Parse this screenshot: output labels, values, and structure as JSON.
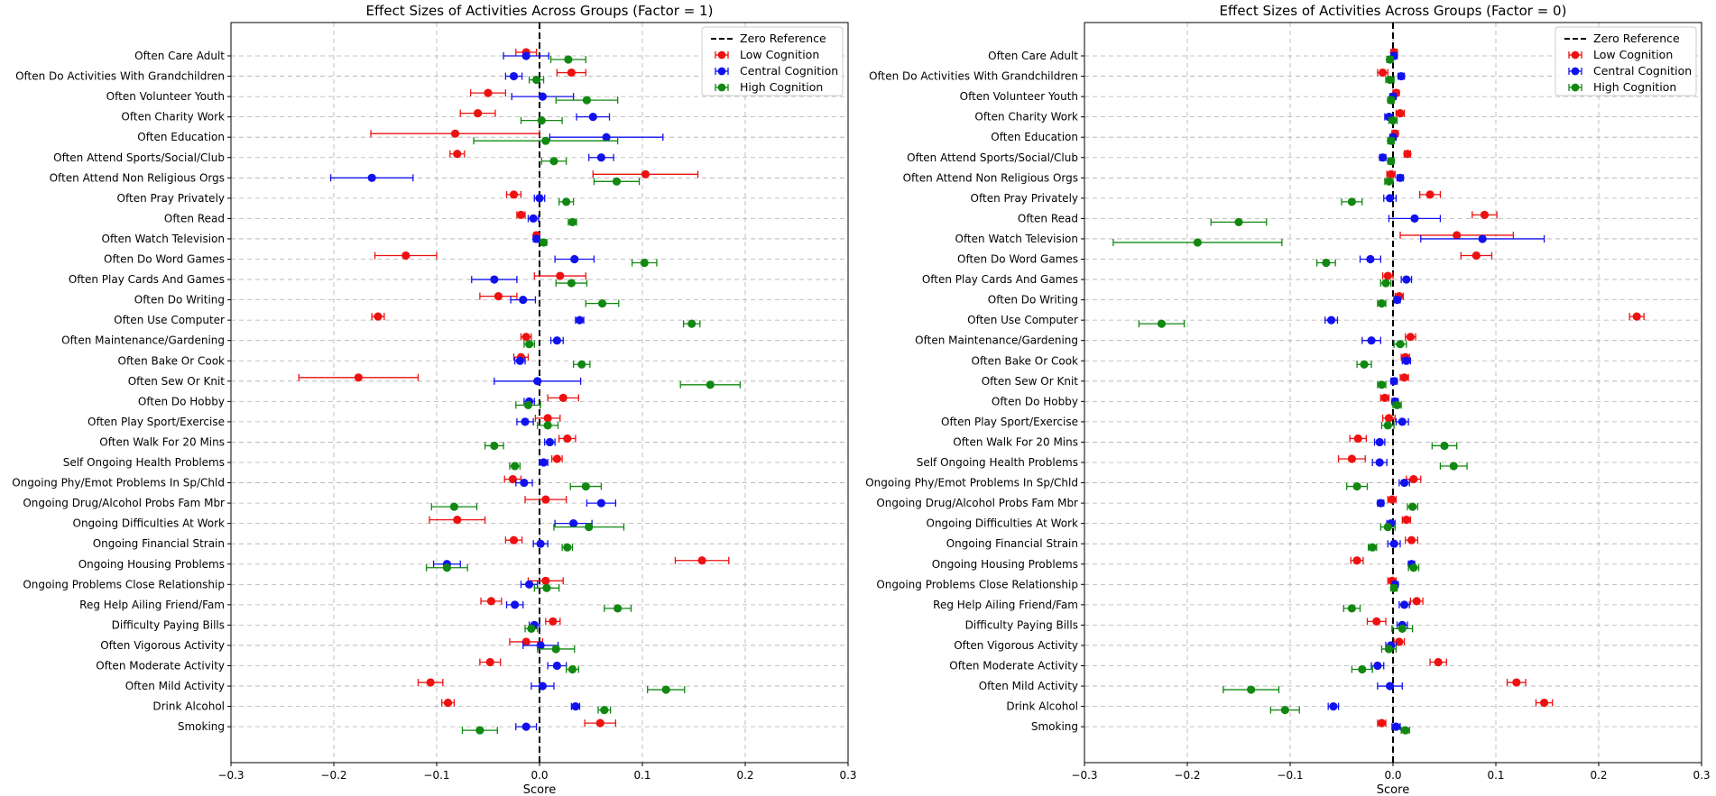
{
  "colors": {
    "low": "#ee1111",
    "central": "#1111ee",
    "high": "#118811",
    "zero": "#000000"
  },
  "chart_data": [
    {
      "type": "scatter",
      "title": "Effect Sizes of Activities Across Groups (Factor = 1)",
      "xlabel": "Score",
      "xlim": [
        -0.3,
        0.3
      ],
      "xticks": [
        "−0.3",
        "−0.2",
        "−0.1",
        "0.0",
        "0.1",
        "0.2",
        "0.3"
      ],
      "legend": {
        "position": "top-right",
        "entries": [
          "Zero Reference",
          "Low Cognition",
          "Central Cognition",
          "High Cognition"
        ]
      },
      "categories": [
        "Often Care Adult",
        "Often Do Activities With Grandchildren",
        "Often Volunteer Youth",
        "Often Charity Work",
        "Often Education",
        "Often Attend Sports/Social/Club",
        "Often Attend Non Religious Orgs",
        "Often Pray Privately",
        "Often Read",
        "Often Watch Television",
        "Often Do Word Games",
        "Often Play Cards And Games",
        "Often Do Writing",
        "Often Use Computer",
        "Often Maintenance/Gardening",
        "Often Bake Or Cook",
        "Often Sew Or Knit",
        "Often Do Hobby",
        "Often Play Sport/Exercise",
        "Often Walk For 20 Mins",
        "Self Ongoing Health Problems",
        "Ongoing Phy/Emot Problems In Sp/Chld",
        "Ongoing Drug/Alcohol Probs Fam Mbr",
        "Ongoing Difficulties At Work",
        "Ongoing Financial Strain",
        "Ongoing Housing Problems",
        "Ongoing Problems Close Relationship",
        "Reg Help Ailing Friend/Fam",
        "Difficulty Paying Bills",
        "Often Vigorous Activity",
        "Often Moderate Activity",
        "Often Mild Activity",
        "Drink Alcohol",
        "Smoking"
      ],
      "series": [
        {
          "name": "Low Cognition",
          "color_key": "low",
          "values": [
            -0.013,
            0.031,
            -0.05,
            -0.06,
            -0.082,
            -0.08,
            0.103,
            -0.025,
            -0.018,
            -0.003,
            -0.13,
            0.02,
            -0.04,
            -0.157,
            -0.013,
            -0.018,
            -0.176,
            0.023,
            0.008,
            0.027,
            0.017,
            -0.026,
            0.006,
            -0.08,
            -0.025,
            0.158,
            0.006,
            -0.047,
            0.013,
            -0.013,
            -0.048,
            -0.106,
            -0.089,
            0.059
          ],
          "errors": [
            0.01,
            0.014,
            0.017,
            0.017,
            0.082,
            0.007,
            0.051,
            0.007,
            0.004,
            0.002,
            0.03,
            0.025,
            0.018,
            0.006,
            0.005,
            0.007,
            0.058,
            0.015,
            0.012,
            0.008,
            0.005,
            0.008,
            0.02,
            0.027,
            0.008,
            0.026,
            0.017,
            0.01,
            0.007,
            0.016,
            0.01,
            0.012,
            0.006,
            0.015
          ]
        },
        {
          "name": "Central Cognition",
          "color_key": "central",
          "values": [
            -0.013,
            -0.025,
            0.003,
            0.052,
            0.065,
            0.06,
            -0.163,
            0.0,
            -0.006,
            -0.003,
            0.034,
            -0.044,
            -0.016,
            0.039,
            0.017,
            -0.019,
            -0.002,
            -0.01,
            -0.014,
            0.01,
            0.004,
            -0.015,
            0.06,
            0.033,
            0.001,
            -0.09,
            -0.01,
            -0.024,
            -0.005,
            0.001,
            0.017,
            0.003,
            0.035,
            -0.013
          ],
          "errors": [
            0.022,
            0.008,
            0.03,
            0.016,
            0.055,
            0.012,
            0.04,
            0.005,
            0.005,
            0.003,
            0.019,
            0.022,
            0.012,
            0.004,
            0.006,
            0.005,
            0.042,
            0.005,
            0.008,
            0.005,
            0.004,
            0.008,
            0.014,
            0.018,
            0.007,
            0.013,
            0.008,
            0.008,
            0.005,
            0.017,
            0.009,
            0.011,
            0.004,
            0.01
          ]
        },
        {
          "name": "High Cognition",
          "color_key": "high",
          "values": [
            0.028,
            -0.003,
            0.046,
            0.002,
            0.006,
            0.014,
            0.075,
            0.026,
            0.032,
            0.004,
            0.102,
            0.031,
            0.061,
            0.148,
            -0.01,
            0.041,
            0.166,
            -0.011,
            0.008,
            -0.044,
            -0.024,
            0.045,
            -0.083,
            0.048,
            0.027,
            -0.09,
            0.007,
            0.076,
            -0.008,
            0.016,
            0.032,
            0.123,
            0.063,
            -0.058
          ],
          "errors": [
            0.017,
            0.007,
            0.03,
            0.02,
            0.07,
            0.012,
            0.022,
            0.007,
            0.004,
            0.003,
            0.012,
            0.015,
            0.016,
            0.008,
            0.005,
            0.008,
            0.029,
            0.012,
            0.01,
            0.009,
            0.005,
            0.015,
            0.022,
            0.034,
            0.005,
            0.02,
            0.012,
            0.013,
            0.006,
            0.018,
            0.006,
            0.018,
            0.006,
            0.017
          ]
        }
      ]
    },
    {
      "type": "scatter",
      "title": "Effect Sizes of Activities Across Groups (Factor = 0)",
      "xlabel": "Score",
      "xlim": [
        -0.3,
        0.3
      ],
      "xticks": [
        "−0.3",
        "−0.2",
        "−0.1",
        "0.0",
        "0.1",
        "0.2",
        "0.3"
      ],
      "legend": {
        "position": "top-right",
        "entries": [
          "Zero Reference",
          "Low Cognition",
          "Central Cognition",
          "High Cognition"
        ]
      },
      "categories": [
        "Often Care Adult",
        "Often Do Activities With Grandchildren",
        "Often Volunteer Youth",
        "Often Charity Work",
        "Often Education",
        "Often Attend Sports/Social/Club",
        "Often Attend Non Religious Orgs",
        "Often Pray Privately",
        "Often Read",
        "Often Watch Television",
        "Often Do Word Games",
        "Often Play Cards And Games",
        "Often Do Writing",
        "Often Use Computer",
        "Often Maintenance/Gardening",
        "Often Bake Or Cook",
        "Often Sew Or Knit",
        "Often Do Hobby",
        "Often Play Sport/Exercise",
        "Often Walk For 20 Mins",
        "Self Ongoing Health Problems",
        "Ongoing Phy/Emot Problems In Sp/Chld",
        "Ongoing Drug/Alcohol Probs Fam Mbr",
        "Ongoing Difficulties At Work",
        "Ongoing Financial Strain",
        "Ongoing Housing Problems",
        "Ongoing Problems Close Relationship",
        "Reg Help Ailing Friend/Fam",
        "Difficulty Paying Bills",
        "Often Vigorous Activity",
        "Often Moderate Activity",
        "Often Mild Activity",
        "Drink Alcohol",
        "Smoking"
      ],
      "series": [
        {
          "name": "Low Cognition",
          "color_key": "low",
          "values": [
            0.001,
            -0.01,
            0.003,
            0.007,
            0.002,
            0.014,
            -0.002,
            0.036,
            0.089,
            0.062,
            0.081,
            -0.005,
            0.006,
            0.237,
            0.017,
            0.012,
            0.011,
            -0.008,
            -0.004,
            -0.034,
            -0.04,
            0.02,
            -0.001,
            0.013,
            0.018,
            -0.035,
            -0.001,
            0.023,
            -0.016,
            0.006,
            0.044,
            0.12,
            0.147,
            -0.011
          ],
          "errors": [
            0.003,
            0.005,
            0.003,
            0.004,
            0.003,
            0.003,
            0.004,
            0.01,
            0.012,
            0.055,
            0.015,
            0.005,
            0.004,
            0.007,
            0.005,
            0.004,
            0.004,
            0.004,
            0.006,
            0.008,
            0.013,
            0.007,
            0.004,
            0.004,
            0.006,
            0.006,
            0.004,
            0.006,
            0.009,
            0.005,
            0.008,
            0.009,
            0.008,
            0.004
          ]
        },
        {
          "name": "Central Cognition",
          "color_key": "central",
          "values": [
            0.001,
            0.008,
            0.0,
            -0.004,
            0.0,
            -0.01,
            0.007,
            -0.003,
            0.021,
            0.087,
            -0.022,
            0.013,
            0.004,
            -0.06,
            -0.021,
            0.013,
            0.001,
            0.002,
            0.009,
            -0.013,
            -0.013,
            0.011,
            -0.012,
            -0.002,
            0.001,
            0.018,
            0.002,
            0.011,
            0.009,
            -0.002,
            -0.015,
            -0.003,
            -0.058,
            0.003
          ],
          "errors": [
            0.003,
            0.003,
            0.003,
            0.004,
            0.003,
            0.003,
            0.003,
            0.006,
            0.025,
            0.06,
            0.01,
            0.005,
            0.003,
            0.006,
            0.009,
            0.004,
            0.003,
            0.003,
            0.006,
            0.005,
            0.007,
            0.005,
            0.003,
            0.004,
            0.006,
            0.003,
            0.003,
            0.005,
            0.005,
            0.005,
            0.006,
            0.012,
            0.005,
            0.004
          ]
        },
        {
          "name": "High Cognition",
          "color_key": "high",
          "values": [
            -0.003,
            -0.003,
            -0.002,
            0.0,
            -0.002,
            -0.002,
            -0.004,
            -0.04,
            -0.15,
            -0.19,
            -0.065,
            -0.007,
            -0.011,
            -0.225,
            0.007,
            -0.028,
            -0.011,
            0.004,
            -0.005,
            0.05,
            0.059,
            -0.035,
            0.019,
            -0.005,
            -0.02,
            0.02,
            0.001,
            -0.04,
            0.009,
            -0.004,
            -0.03,
            -0.138,
            -0.105,
            0.012
          ],
          "errors": [
            0.003,
            0.004,
            0.003,
            0.004,
            0.003,
            0.003,
            0.004,
            0.01,
            0.027,
            0.082,
            0.009,
            0.005,
            0.004,
            0.022,
            0.006,
            0.007,
            0.004,
            0.004,
            0.006,
            0.012,
            0.013,
            0.01,
            0.005,
            0.007,
            0.004,
            0.005,
            0.003,
            0.008,
            0.01,
            0.007,
            0.01,
            0.027,
            0.014,
            0.004
          ]
        }
      ]
    }
  ]
}
